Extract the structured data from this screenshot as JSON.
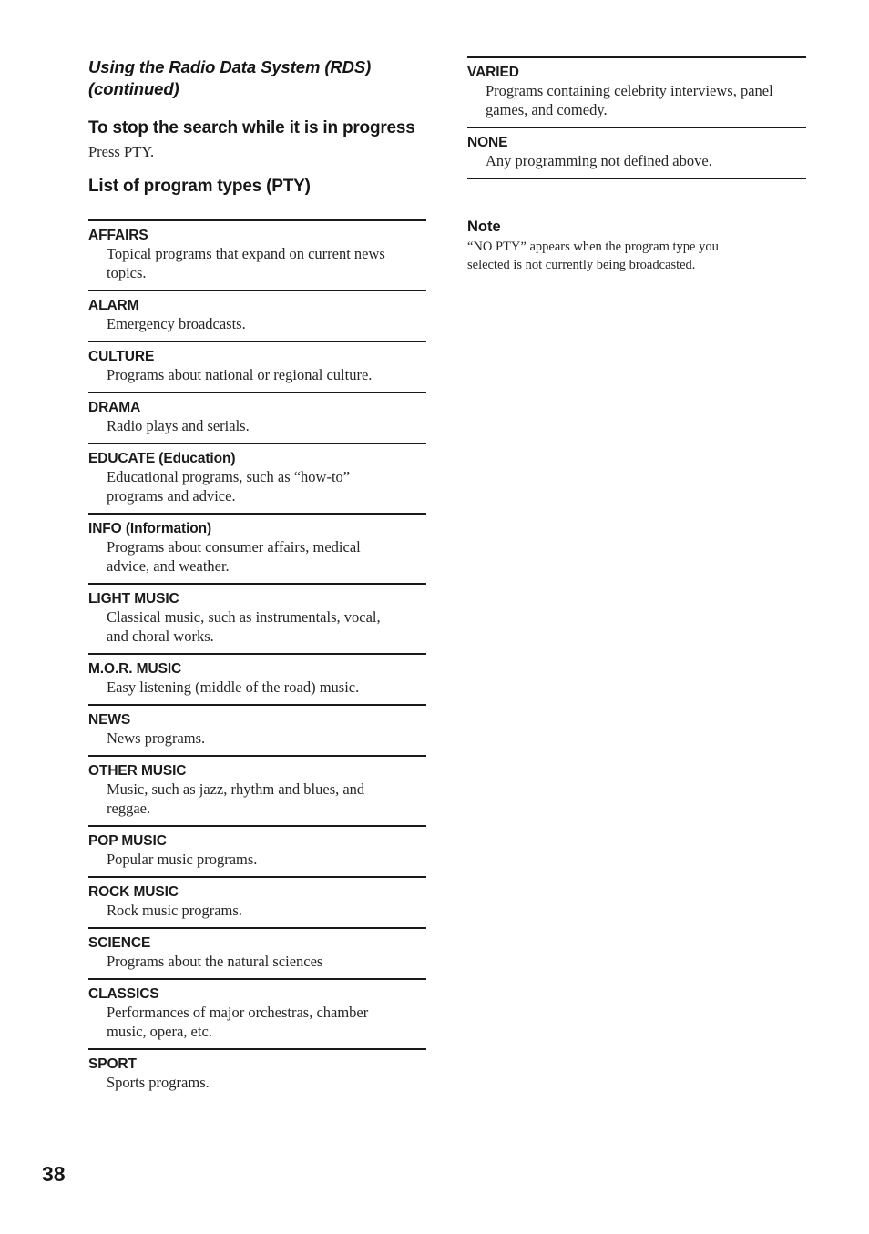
{
  "page": {
    "number": "38"
  },
  "left": {
    "continued_title": "Using the Radio Data System (RDS) (continued)",
    "section_heading": "To stop the search while it is in progress",
    "section_body": "Press PTY.",
    "list_heading": "List of program types (PTY)"
  },
  "pty_list": {
    "items": [
      {
        "name": "AFFAIRS",
        "description": "Topical programs that expand on current news topics."
      },
      {
        "name": "ALARM",
        "description": "Emergency broadcasts."
      },
      {
        "name": "CULTURE",
        "description": "Programs about national or regional culture."
      },
      {
        "name": "DRAMA",
        "description": "Radio plays and serials."
      },
      {
        "name": "EDUCATE (Education)",
        "description": "Educational programs, such as “how-to” programs and advice."
      },
      {
        "name": "INFO (Information)",
        "description": "Programs about consumer affairs, medical advice, and weather."
      },
      {
        "name": "LIGHT MUSIC",
        "description": "Classical music, such as instrumentals, vocal, and choral works."
      },
      {
        "name": "M.O.R. MUSIC",
        "description": "Easy listening (middle of the road) music."
      },
      {
        "name": "NEWS",
        "description": "News programs."
      },
      {
        "name": "OTHER MUSIC",
        "description": "Music, such as jazz, rhythm and blues, and reggae."
      },
      {
        "name": "POP MUSIC",
        "description": "Popular music programs."
      },
      {
        "name": "ROCK MUSIC",
        "description": "Rock music programs."
      },
      {
        "name": "SCIENCE",
        "description": "Programs about the natural sciences"
      },
      {
        "name": "CLASSICS",
        "description": "Performances of major orchestras, chamber music, opera, etc."
      },
      {
        "name": "SPORT",
        "description": "Sports programs."
      }
    ]
  },
  "right": {
    "items": [
      {
        "name": "VARIED",
        "description": "Programs containing celebrity interviews, panel games, and comedy."
      },
      {
        "name": "NONE",
        "description": "Any programming not defined above."
      }
    ],
    "note_heading": "Note",
    "note_body": "“NO PTY” appears when the program type you selected is not currently being broadcasted."
  }
}
